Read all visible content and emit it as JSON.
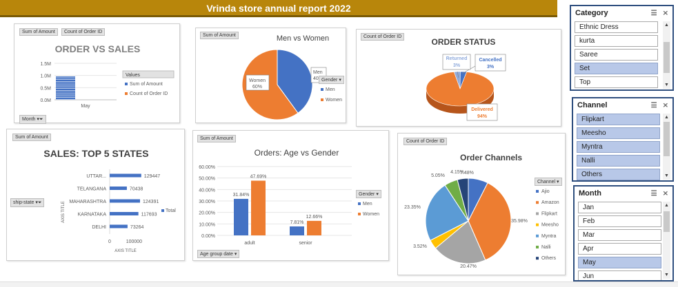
{
  "banner": {
    "title": "Vrinda store annual report 2022"
  },
  "order_vs_sales": {
    "title": "ORDER VS SALES",
    "btn_sum": "Sum of Amount",
    "btn_count": "Count of Order ID",
    "legend_title": "Values",
    "legend_items": [
      "Sum of Amount",
      "Count of Order ID"
    ],
    "filter_btn": "Month"
  },
  "men_women": {
    "title": "Men vs Women",
    "btn": "Sum of Amount",
    "legend_title": "Gender",
    "slice_labels": [
      "Men 40%",
      "Women 60%"
    ]
  },
  "order_status": {
    "title": "ORDER STATUS",
    "btn": "Count of Order ID"
  },
  "top_states": {
    "title": "SALES: TOP 5 STATES",
    "btn": "Sum of Amount",
    "filter_btn": "ship-state",
    "legend": "Total",
    "ylabel": "AXIS TITLE",
    "xlabel": "AXIS TITLE"
  },
  "age_gender": {
    "title": "Orders: Age vs Gender",
    "btn": "Sum of Amount",
    "legend_title": "Gender",
    "filter_btn": "Age group date"
  },
  "order_channels": {
    "title": "Order Channels",
    "btn": "Count of Order ID",
    "legend_title": "Channel"
  },
  "slicers": {
    "category": {
      "title": "Category",
      "items": [
        {
          "label": "Ethnic Dress",
          "selected": false
        },
        {
          "label": "kurta",
          "selected": false
        },
        {
          "label": "Saree",
          "selected": false
        },
        {
          "label": "Set",
          "selected": true
        },
        {
          "label": "Top",
          "selected": false
        }
      ]
    },
    "channel": {
      "title": "Channel",
      "items": [
        {
          "label": "Flipkart",
          "selected": true
        },
        {
          "label": "Meesho",
          "selected": true
        },
        {
          "label": "Myntra",
          "selected": true
        },
        {
          "label": "Nalli",
          "selected": true
        },
        {
          "label": "Others",
          "selected": true
        }
      ]
    },
    "month": {
      "title": "Month",
      "items": [
        {
          "label": "Jan",
          "selected": false
        },
        {
          "label": "Feb",
          "selected": false
        },
        {
          "label": "Mar",
          "selected": false
        },
        {
          "label": "Apr",
          "selected": false
        },
        {
          "label": "May",
          "selected": true
        },
        {
          "label": "Jun",
          "selected": false
        }
      ]
    }
  },
  "icons": [
    "multiselect-icon",
    "clear-filter-icon",
    "dropdown-arrow-icon",
    "filter-icon"
  ],
  "colors": {
    "blue": "#4472c4",
    "orange": "#ed7d31",
    "gray": "#a5a5a5",
    "yellow": "#ffc000",
    "lightblue": "#5b9bd5",
    "green": "#70ad47",
    "navy": "#264478",
    "banner": "#b8860b",
    "slicer_selected": "#b8c8e8"
  },
  "chart_data": [
    {
      "id": "order_vs_sales",
      "type": "bar",
      "title": "ORDER VS SALES",
      "categories": [
        "May"
      ],
      "yticks": [
        "0.0M",
        "0.5M",
        "1.0M",
        "1.5M"
      ],
      "ylim": [
        0,
        1500000
      ],
      "series": [
        {
          "name": "Sum of Amount",
          "values": [
            960000
          ]
        },
        {
          "name": "Count of Order ID",
          "values": [
            0
          ]
        }
      ],
      "legend": "right"
    },
    {
      "id": "men_women",
      "type": "pie",
      "title": "Men vs Women",
      "labels": [
        "Men",
        "Women"
      ],
      "values": [
        40,
        60
      ],
      "legend": "right"
    },
    {
      "id": "order_status",
      "type": "pie",
      "title": "ORDER STATUS",
      "labels": [
        "Returned",
        "Cancelled",
        "Delivered"
      ],
      "values": [
        3,
        3,
        94
      ]
    },
    {
      "id": "top_states",
      "type": "bar",
      "orientation": "horizontal",
      "title": "SALES: TOP 5 STATES",
      "categories": [
        "UTTAR...",
        "TELANGANA",
        "MAHARASHTRA",
        "KARNATAKA",
        "DELHI"
      ],
      "values": [
        129447,
        70438,
        124391,
        117693,
        73264
      ],
      "xticks": [
        "0",
        "100000"
      ],
      "xlim": [
        0,
        130000
      ],
      "xlabel": "AXIS TITLE",
      "ylabel": "AXIS TITLE",
      "legend": "right"
    },
    {
      "id": "age_gender",
      "type": "bar",
      "title": "Orders: Age vs Gender",
      "categories": [
        "adult",
        "senior"
      ],
      "yticks": [
        "0.00%",
        "10.00%",
        "20.00%",
        "30.00%",
        "40.00%",
        "50.00%",
        "60.00%"
      ],
      "ylim": [
        0,
        60
      ],
      "series": [
        {
          "name": "Men",
          "values": [
            31.84,
            7.81
          ]
        },
        {
          "name": "Women",
          "values": [
            47.69,
            12.66
          ]
        }
      ],
      "data_labels": [
        [
          "31.84%",
          "7.81%"
        ],
        [
          "47.69%",
          "12.66%"
        ]
      ],
      "legend": "right"
    },
    {
      "id": "order_channels",
      "type": "pie",
      "title": "Order Channels",
      "labels": [
        "Ajio",
        "Amazon",
        "Flipkart",
        "Meesho",
        "Myntra",
        "Nalli",
        "Others"
      ],
      "values": [
        7.48,
        35.98,
        20.47,
        3.52,
        23.35,
        5.05,
        4.15
      ],
      "data_labels": [
        "7.48%",
        "35.98%",
        "20.47%",
        "3.52%",
        "23.35%",
        "5.05%",
        "4.15%"
      ],
      "legend": "right"
    }
  ]
}
